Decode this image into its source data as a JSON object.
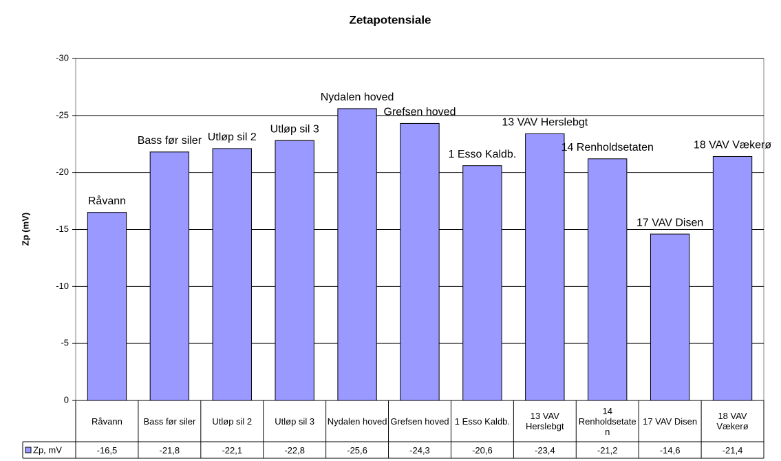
{
  "chart_data": {
    "type": "bar",
    "title": "Zetapotensiale",
    "y_label": "Zp (mV)",
    "categories": [
      "Råvann",
      "Bass før siler",
      "Utløp sil 2",
      "Utløp sil 3",
      "Nydalen hoved",
      "Grefsen hoved",
      "1 Esso Kaldb.",
      "13 VAV Herslebgt",
      "14 Renholdsetaten",
      "17 VAV Disen",
      "18 VAV Vækerø"
    ],
    "series": [
      {
        "name": "Zp, mV",
        "color": "#9999ff",
        "values": [
          -16.5,
          -21.8,
          -22.1,
          -22.8,
          -25.6,
          -24.3,
          -20.6,
          -23.4,
          -21.2,
          -14.6,
          -21.4
        ],
        "value_labels": [
          "-16,5",
          "-21,8",
          "-22,1",
          "-22,8",
          "-25,6",
          "-24,3",
          "-20,6",
          "-23,4",
          "-21,2",
          "-14,6",
          "-21,4"
        ]
      }
    ],
    "ylim": [
      0,
      -30
    ],
    "yticks": [
      -30,
      -25,
      -20,
      -15,
      -10,
      -5,
      0
    ],
    "grid": true
  }
}
